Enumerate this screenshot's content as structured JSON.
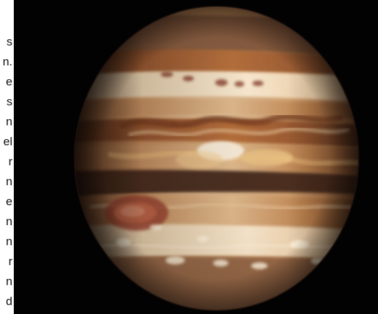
{
  "article": {
    "lines": [
      "s",
      "n.",
      "e",
      "s",
      "n",
      "el",
      "r",
      "n",
      "e",
      "n",
      "n",
      "r",
      "n",
      "d"
    ]
  },
  "photo": {
    "subject": "Jupiter",
    "background_color": "#020202",
    "palette": {
      "cream": "#f2dfbf",
      "tan": "#c89a63",
      "orange_brown": "#a8652f",
      "dark_band": "#5a2d17",
      "red_spot": "#b04b32"
    }
  }
}
